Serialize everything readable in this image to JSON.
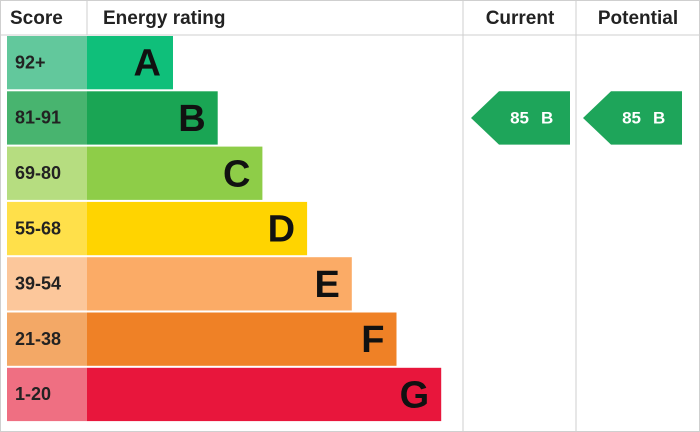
{
  "headers": {
    "score": "Score",
    "rating": "Energy rating",
    "current": "Current",
    "potential": "Potential"
  },
  "bands": [
    {
      "score": "92+",
      "letter": "A",
      "color": "#0fbf7a",
      "score_color": "#62c89c"
    },
    {
      "score": "81-91",
      "letter": "B",
      "color": "#1aa554",
      "score_color": "#48b46f"
    },
    {
      "score": "69-80",
      "letter": "C",
      "color": "#8ecd48",
      "score_color": "#b6dd80"
    },
    {
      "score": "55-68",
      "letter": "D",
      "color": "#ffd400",
      "score_color": "#ffe04a"
    },
    {
      "score": "39-54",
      "letter": "E",
      "color": "#fbab66",
      "score_color": "#fcc79b"
    },
    {
      "score": "21-38",
      "letter": "F",
      "color": "#ef8126",
      "score_color": "#f3a866"
    },
    {
      "score": "1-20",
      "letter": "G",
      "color": "#e8163c",
      "score_color": "#ef6f82"
    }
  ],
  "current": {
    "value": 85,
    "letter": "B",
    "color": "#1ea55a"
  },
  "potential": {
    "value": 85,
    "letter": "B",
    "color": "#1ea55a"
  }
}
